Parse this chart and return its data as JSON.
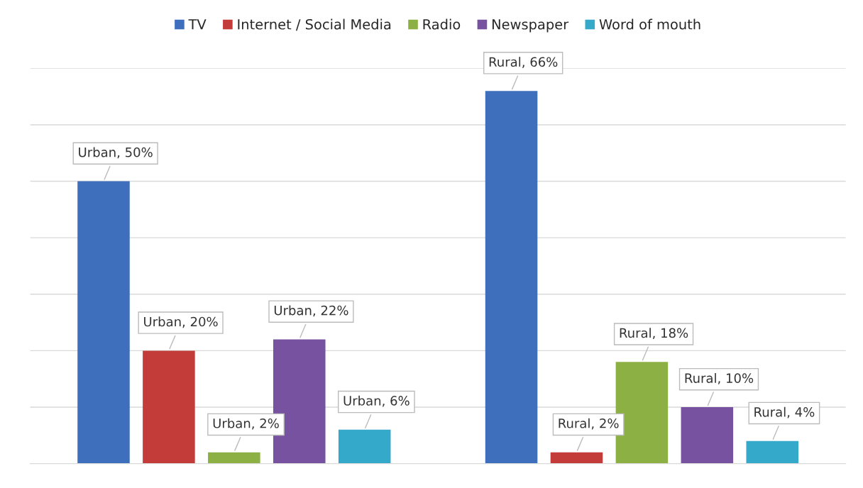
{
  "chart_data": {
    "type": "bar",
    "categories": [
      null,
      null
    ],
    "series": [
      {
        "name": "TV",
        "color": "#3d6fbd",
        "values": [
          50,
          66
        ],
        "value_labels": [
          "Urban, 50%",
          "Rural, 66%"
        ]
      },
      {
        "name": "Internet / Social Media",
        "color": "#c43c39",
        "values": [
          20,
          2
        ],
        "value_labels": [
          "Urban, 20%",
          "Rural, 2%"
        ]
      },
      {
        "name": "Radio",
        "color": "#8cb043",
        "values": [
          2,
          18
        ],
        "value_labels": [
          "Urban, 2%",
          "Rural, 18%"
        ]
      },
      {
        "name": "Newspaper",
        "color": "#7652a0",
        "values": [
          22,
          10
        ],
        "value_labels": [
          "Urban, 22%",
          "Rural, 10%"
        ]
      },
      {
        "name": "Word of mouth",
        "color": "#35a9c9",
        "values": [
          6,
          4
        ],
        "value_labels": [
          "Urban, 6%",
          "Rural, 4%"
        ]
      }
    ],
    "ylim": [
      0,
      70
    ],
    "yticks": [
      {
        "value": 0,
        "label": null
      },
      {
        "value": 10,
        "label": null
      },
      {
        "value": 20,
        "label": null
      },
      {
        "value": 30,
        "label": null
      },
      {
        "value": 40,
        "label": null
      },
      {
        "value": 50,
        "label": null
      },
      {
        "value": 60,
        "label": null
      },
      {
        "value": 70,
        "label": null
      }
    ],
    "grid": "y",
    "legend": "top"
  }
}
